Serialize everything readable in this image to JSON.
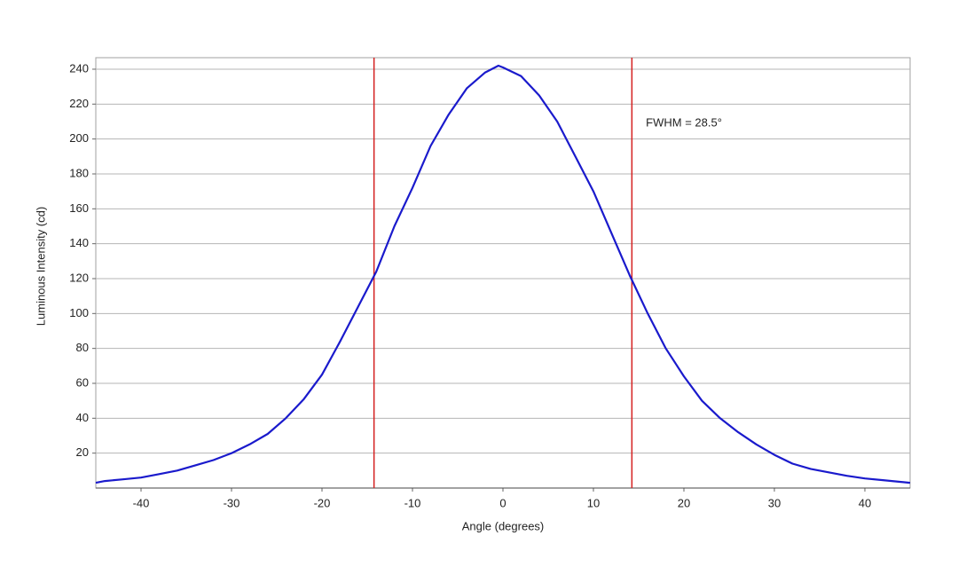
{
  "chart_data": {
    "type": "line",
    "xlabel": "Angle (degrees)",
    "ylabel": "Luminous Intensity (cd)",
    "x": [
      -45,
      -44,
      -42,
      -40,
      -38,
      -36,
      -34,
      -32,
      -30,
      -28,
      -26,
      -24,
      -22,
      -20,
      -18,
      -16,
      -14,
      -12,
      -10,
      -8,
      -6,
      -4,
      -2,
      -0.5,
      0,
      2,
      4,
      6,
      8,
      10,
      12,
      14,
      16,
      18,
      20,
      22,
      24,
      26,
      28,
      30,
      32,
      34,
      36,
      38,
      40,
      42,
      44,
      45
    ],
    "series": [
      {
        "name": "Luminous Intensity",
        "color": "#1a1acc",
        "values": [
          3,
          4,
          5,
          6,
          8,
          10,
          13,
          16,
          20,
          25,
          31,
          40,
          51,
          65,
          84,
          104,
          124,
          150,
          172,
          196,
          214,
          229,
          238,
          242,
          241,
          236,
          225,
          210,
          190,
          170,
          146,
          122,
          100,
          80,
          64,
          50,
          40,
          32,
          25,
          19,
          14,
          11,
          9,
          7,
          5.5,
          4.5,
          3.5,
          3
        ]
      }
    ],
    "vlines": [
      -14.25,
      14.25
    ],
    "vline_color": "#d42020",
    "annotations": [
      {
        "text": "FWHM = 28.5°",
        "x": 15.8,
        "y": 209
      }
    ],
    "xlim": [
      -45,
      45
    ],
    "xticks": [
      -40,
      -30,
      -20,
      -10,
      0,
      10,
      20,
      30,
      40
    ],
    "ylim": [
      0,
      246.6
    ],
    "yticks": [
      20,
      40,
      60,
      80,
      100,
      120,
      140,
      160,
      180,
      200,
      220,
      240
    ],
    "grid": true
  }
}
